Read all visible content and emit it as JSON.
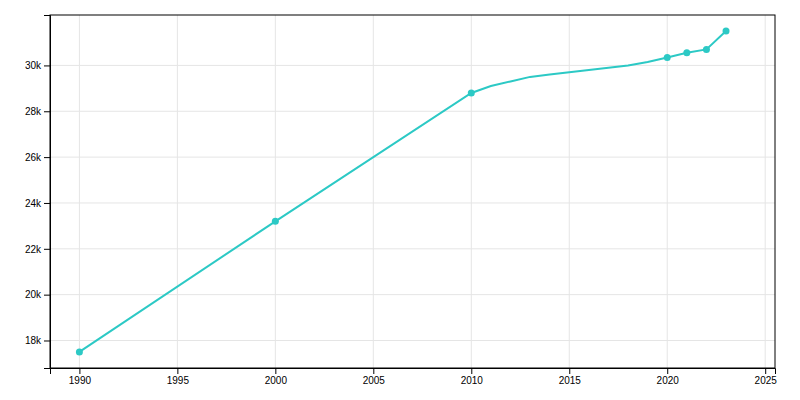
{
  "chart_data": {
    "type": "line",
    "x": [
      1990,
      2000,
      2010,
      2011,
      2012,
      2013,
      2014,
      2015,
      2016,
      2017,
      2018,
      2019,
      2020,
      2021,
      2022,
      2023
    ],
    "series": [
      {
        "type": "line",
        "color": "#2cc9c5",
        "line_style": "solid",
        "values": [
          17500,
          23200,
          28800,
          29100,
          29300,
          29500,
          29600,
          29700,
          29800,
          29900,
          30000,
          30150,
          30350,
          30550,
          30700,
          31500
        ]
      },
      {
        "type": "scatter",
        "color": "#2cc9c5",
        "marker": "circle",
        "values": [
          17500,
          23200,
          28800,
          null,
          null,
          null,
          null,
          null,
          null,
          null,
          null,
          null,
          30350,
          30550,
          30700,
          31500
        ]
      }
    ],
    "xlim": [
      1988.5,
      2025.5
    ],
    "xticks": [
      1990,
      1995,
      2000,
      2005,
      2010,
      2015,
      2020,
      2025
    ],
    "ylim": [
      16800,
      32200
    ],
    "yticks": [
      {
        "value": 18000,
        "label": "18k"
      },
      {
        "value": 20000,
        "label": "20k"
      },
      {
        "value": 22000,
        "label": "22k"
      },
      {
        "value": 24000,
        "label": "24k"
      },
      {
        "value": 26000,
        "label": "26k"
      },
      {
        "value": 28000,
        "label": "28k"
      },
      {
        "value": 30000,
        "label": "30k"
      }
    ],
    "grid": true
  }
}
